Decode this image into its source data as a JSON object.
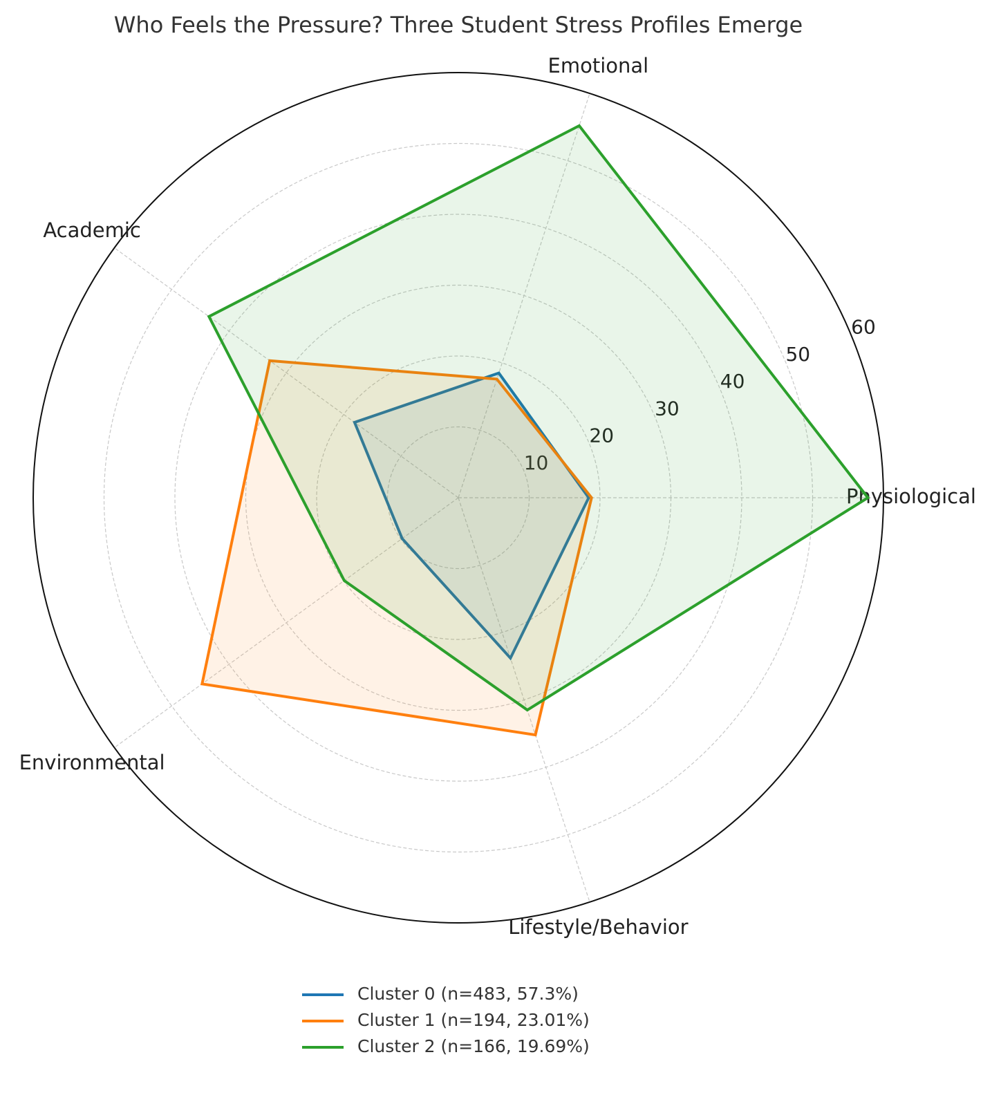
{
  "chart_data": {
    "type": "radar",
    "title": "Who Feels the Pressure? Three Student Stress Profiles Emerge",
    "categories": [
      "Physiological",
      "Emotional",
      "Academic",
      "Environmental",
      "Lifestyle/Behavior"
    ],
    "series": [
      {
        "name": "Cluster 0 (n=483, 57.3%)",
        "color": "#1f77b4",
        "values": [
          18.4,
          18.5,
          18.1,
          9.8,
          23.8
        ]
      },
      {
        "name": "Cluster 1 (n=194, 23.01%)",
        "color": "#ff7f0e",
        "values": [
          18.8,
          17.6,
          32.9,
          44.7,
          35.2
        ]
      },
      {
        "name": "Cluster 2 (n=166, 19.69%)",
        "color": "#2ca02c",
        "values": [
          57.8,
          55.2,
          43.5,
          19.9,
          31.5
        ]
      }
    ],
    "ylim": [
      0,
      60
    ],
    "yticks": [
      10,
      20,
      30,
      40,
      50,
      60
    ],
    "grid": true,
    "legend": "bottom"
  }
}
